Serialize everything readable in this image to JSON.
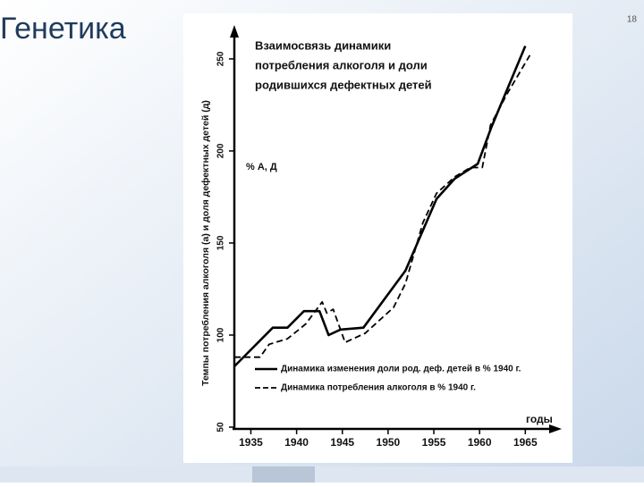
{
  "slide": {
    "title": "Генетика",
    "page_number": "18"
  },
  "chart_data": {
    "type": "line",
    "title": [
      "Взаимосвязь динамики",
      "потребления алкоголя и доли",
      "родившихся дефектных детей"
    ],
    "y_label": "Темпы потребления алкоголя (а) и доля дефектных детей (д)",
    "annotation": "% А, Д",
    "x_label": "годы",
    "xlim": [
      1933,
      1968
    ],
    "xticks": [
      1935,
      1940,
      1945,
      1950,
      1955,
      1960,
      1965
    ],
    "ylim": [
      50,
      265
    ],
    "yticks": [
      50,
      100,
      150,
      200,
      250
    ],
    "grid": false,
    "series": [
      {
        "name": "Динамика изменения доли род. деф. детей в % 1940 г.",
        "color": "#000000",
        "style": "solid",
        "x": [
          1933.2,
          1937.4,
          1939,
          1940.8,
          1942.5,
          1943.5,
          1944.8,
          1947.3,
          1951.9,
          1955.3,
          1957.3,
          1959.8,
          1961.3,
          1965
        ],
        "values": [
          83,
          104,
          104,
          113,
          113,
          100,
          103,
          104,
          135,
          174,
          185,
          193,
          213,
          257
        ]
      },
      {
        "name": "Динамика потребления алкоголя в % 1940 г.",
        "color": "#000000",
        "style": "dashed",
        "x": [
          1933.2,
          1936,
          1937,
          1939,
          1941,
          1942.8,
          1943.3,
          1944,
          1945.3,
          1947.5,
          1950.6,
          1951.9,
          1953.8,
          1955.3,
          1957.3,
          1959,
          1960.3,
          1961.2,
          1963,
          1965.5
        ],
        "values": [
          88,
          88,
          95,
          98,
          106,
          118,
          112,
          114,
          96,
          101,
          115,
          128,
          161,
          177,
          186,
          191,
          191,
          214,
          231,
          252
        ]
      }
    ]
  }
}
